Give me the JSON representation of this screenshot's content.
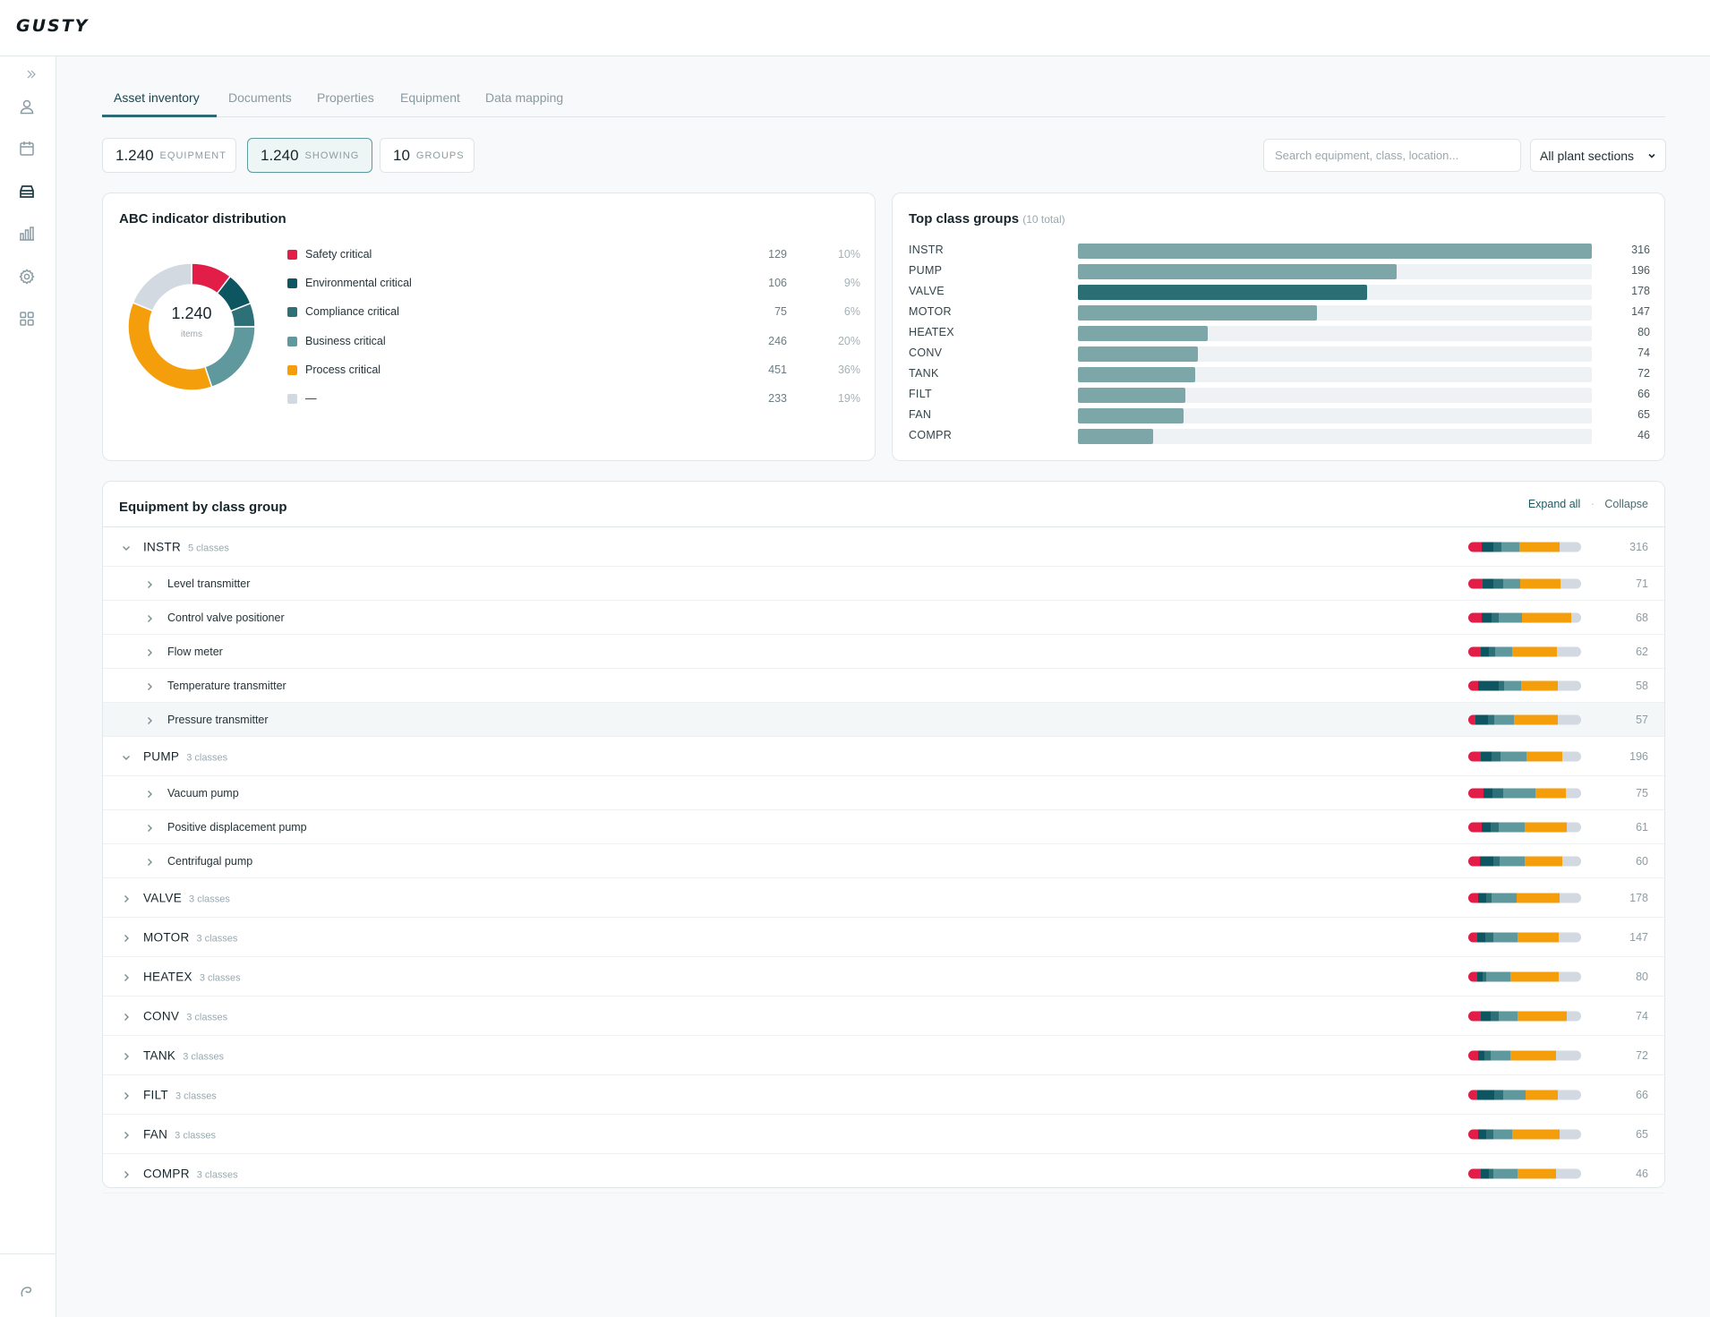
{
  "app": {
    "logo": "GUSTY"
  },
  "sidebar": {
    "items": [
      {
        "icon": "double-chevron-right-icon"
      },
      {
        "icon": "user-icon"
      },
      {
        "icon": "calendar-icon"
      },
      {
        "icon": "inventory-icon",
        "active": true
      },
      {
        "icon": "bar-chart-icon"
      },
      {
        "icon": "gear-icon"
      },
      {
        "icon": "grid-icon"
      }
    ],
    "footer_icon": "brand-mark-icon"
  },
  "tabs": [
    {
      "label": "Asset inventory",
      "active": true
    },
    {
      "label": "Documents"
    },
    {
      "label": "Properties"
    },
    {
      "label": "Equipment"
    },
    {
      "label": "Data mapping"
    }
  ],
  "chips": [
    {
      "num": "1.240",
      "label": "Equipment"
    },
    {
      "num": "1.240",
      "label": "Showing",
      "active": true
    },
    {
      "num": "10",
      "label": "Groups"
    }
  ],
  "search": {
    "placeholder": "Search equipment, class, location..."
  },
  "filter": {
    "value": "All plant sections"
  },
  "colors": {
    "safety": "#e11d48",
    "environmental": "#0d5560",
    "compliance": "#2e7078",
    "business": "#5f999d",
    "process": "#f59e0b",
    "none": "#d2d9e1"
  },
  "abc": {
    "title": "ABC indicator distribution",
    "center_value": "1.240",
    "center_label": "items",
    "rows": [
      {
        "name": "Safety critical",
        "count": "129",
        "pct": "10%",
        "color": "#e11d48"
      },
      {
        "name": "Environmental critical",
        "count": "106",
        "pct": "9%",
        "color": "#0d5560"
      },
      {
        "name": "Compliance critical",
        "count": "75",
        "pct": "6%",
        "color": "#2e7078"
      },
      {
        "name": "Business critical",
        "count": "246",
        "pct": "20%",
        "color": "#5f999d"
      },
      {
        "name": "Process critical",
        "count": "451",
        "pct": "36%",
        "color": "#f59e0b"
      },
      {
        "name": "—",
        "count": "233",
        "pct": "19%",
        "color": "#d2d9e1"
      }
    ]
  },
  "top_groups": {
    "title": "Top class groups",
    "subtitle": "(10 total)"
  },
  "chart_data": {
    "type": "bar",
    "orientation": "horizontal",
    "title": "Top class groups",
    "categories": [
      "INSTR",
      "PUMP",
      "VALVE",
      "MOTOR",
      "HEATEX",
      "CONV",
      "TANK",
      "FILT",
      "FAN",
      "COMPR"
    ],
    "values": [
      316,
      196,
      178,
      147,
      80,
      74,
      72,
      66,
      65,
      46
    ],
    "highlighted": "VALVE",
    "xlim": [
      0,
      316
    ]
  },
  "table": {
    "title": "Equipment by class group",
    "expand_label": "Expand all",
    "separator": "·",
    "collapse_label": "Collapse",
    "rows": [
      {
        "kind": "group",
        "name": "INSTR",
        "classes": "5 classes",
        "count": "316",
        "expanded": true,
        "dist": [
          12,
          10,
          7,
          16,
          36,
          19
        ]
      },
      {
        "kind": "sub",
        "name": "Level transmitter",
        "count": "71",
        "dist": [
          12,
          9,
          8,
          14,
          33,
          17
        ]
      },
      {
        "kind": "sub",
        "name": "Control valve positioner",
        "count": "68",
        "dist": [
          11,
          8,
          6,
          19,
          41,
          8
        ]
      },
      {
        "kind": "sub",
        "name": "Flow meter",
        "count": "62",
        "dist": [
          10,
          7,
          5,
          14,
          37,
          20
        ]
      },
      {
        "kind": "sub",
        "name": "Temperature transmitter",
        "count": "58",
        "dist": [
          9,
          18,
          5,
          15,
          32,
          21
        ]
      },
      {
        "kind": "sub",
        "name": "Pressure transmitter",
        "count": "57",
        "dist": [
          6,
          11,
          5,
          17,
          37,
          20
        ],
        "hover": true
      },
      {
        "kind": "group",
        "name": "PUMP",
        "classes": "3 classes",
        "count": "196",
        "expanded": true,
        "dist": [
          11,
          9,
          8,
          22,
          31,
          16
        ]
      },
      {
        "kind": "sub",
        "name": "Vacuum pump",
        "count": "75",
        "dist": [
          13,
          8,
          10,
          28,
          27,
          13
        ]
      },
      {
        "kind": "sub",
        "name": "Positive displacement pump",
        "count": "61",
        "dist": [
          12,
          8,
          7,
          23,
          37,
          13
        ]
      },
      {
        "kind": "sub",
        "name": "Centrifugal pump",
        "count": "60",
        "dist": [
          10,
          12,
          6,
          22,
          33,
          17
        ]
      },
      {
        "kind": "group",
        "name": "VALVE",
        "classes": "3 classes",
        "count": "178",
        "dist": [
          9,
          7,
          5,
          22,
          38,
          19
        ]
      },
      {
        "kind": "group",
        "name": "MOTOR",
        "classes": "3 classes",
        "count": "147",
        "dist": [
          8,
          7,
          7,
          22,
          36,
          20
        ]
      },
      {
        "kind": "group",
        "name": "HEATEX",
        "classes": "3 classes",
        "count": "80",
        "dist": [
          8,
          5,
          3,
          21,
          43,
          20
        ]
      },
      {
        "kind": "group",
        "name": "CONV",
        "classes": "3 classes",
        "count": "74",
        "dist": [
          11,
          9,
          7,
          17,
          43,
          13
        ]
      },
      {
        "kind": "group",
        "name": "TANK",
        "classes": "3 classes",
        "count": "72",
        "dist": [
          9,
          5,
          6,
          17,
          41,
          22
        ]
      },
      {
        "kind": "group",
        "name": "FILT",
        "classes": "3 classes",
        "count": "66",
        "dist": [
          8,
          15,
          8,
          20,
          28,
          21
        ]
      },
      {
        "kind": "group",
        "name": "FAN",
        "classes": "3 classes",
        "count": "65",
        "dist": [
          9,
          7,
          6,
          17,
          42,
          19
        ]
      },
      {
        "kind": "group",
        "name": "COMPR",
        "classes": "3 classes",
        "count": "46",
        "dist": [
          11,
          7,
          4,
          22,
          34,
          22
        ]
      }
    ]
  }
}
